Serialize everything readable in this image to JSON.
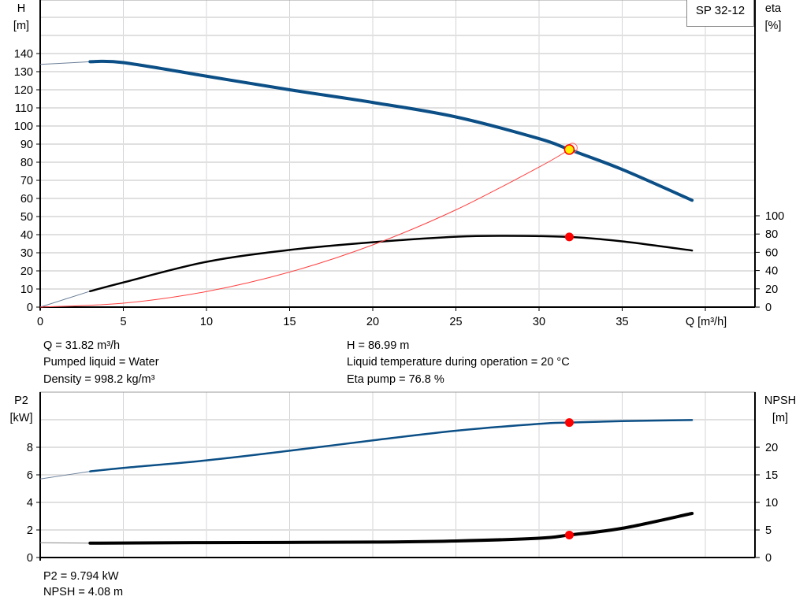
{
  "chart_data": [
    {
      "type": "line",
      "legend": "SP 32-12",
      "legend_placement": "top-right",
      "xlabel": "Q [m³/h]",
      "xlim": [
        0,
        40
      ],
      "x_ticks": [
        "0",
        "5",
        "10",
        "15",
        "20",
        "25",
        "30",
        "35"
      ],
      "ylabel_left": "H",
      "ylabel_left_unit": "[m]",
      "ylim_left": [
        0,
        160
      ],
      "y_ticks_left": [
        "0",
        "10",
        "20",
        "30",
        "40",
        "50",
        "60",
        "70",
        "80",
        "90",
        "100",
        "110",
        "120",
        "130",
        "140"
      ],
      "ylabel_right": "eta",
      "ylabel_right_unit": "[%]",
      "ylim_right": [
        0,
        320
      ],
      "y_ticks_right": [
        "0",
        "20",
        "40",
        "60",
        "80",
        "100"
      ],
      "grid": true,
      "series": [
        {
          "key": "H",
          "axis": "left",
          "color": "#0b4f86",
          "x": [
            0,
            3,
            5,
            10,
            15,
            20,
            25,
            30,
            31.82,
            35,
            39.2
          ],
          "y": [
            134,
            135.5,
            135,
            127.5,
            120,
            113,
            105,
            93,
            86.99,
            76,
            59
          ],
          "thin_until": 3
        },
        {
          "key": "eta",
          "axis": "right",
          "color": "#000000",
          "x": [
            0,
            3,
            5,
            10,
            15,
            20,
            25,
            28,
            31.82,
            35,
            39.2
          ],
          "y": [
            0,
            17.4,
            27,
            49.6,
            62.6,
            71,
            77,
            78,
            76.8,
            72,
            62
          ],
          "thin_until": 3
        },
        {
          "key": "system",
          "axis": "left",
          "color": "#ff4040",
          "x": [
            0,
            5,
            10,
            15,
            20,
            25,
            30,
            31.82
          ],
          "y": [
            0,
            2.15,
            8.59,
            19.33,
            34.36,
            53.69,
            77.31,
            86.99
          ]
        }
      ],
      "duty_point": {
        "Q": 31.82,
        "H": 86.99,
        "eta": 76.8
      }
    },
    {
      "type": "line",
      "xlim": [
        0,
        40
      ],
      "ylabel_left": "P2",
      "ylabel_left_unit": "[kW]",
      "ylim_left": [
        0,
        10
      ],
      "y_ticks_left": [
        "0",
        "2",
        "4",
        "6",
        "8"
      ],
      "ylabel_right": "NPSH",
      "ylabel_right_unit": "[m]",
      "ylim_right": [
        0,
        25
      ],
      "y_ticks_right": [
        "0",
        "5",
        "10",
        "15",
        "20"
      ],
      "grid": true,
      "series": [
        {
          "key": "P2",
          "axis": "left",
          "color": "#0b4f86",
          "x": [
            0,
            3,
            5,
            10,
            15,
            20,
            25,
            30,
            31.82,
            35,
            39.2
          ],
          "y": [
            5.7,
            6.25,
            6.5,
            7.05,
            7.75,
            8.5,
            9.2,
            9.7,
            9.794,
            9.9,
            9.98
          ],
          "thin_until": 3
        },
        {
          "key": "NPSH",
          "axis": "right",
          "color": "#000000",
          "x": [
            0,
            3,
            10,
            20,
            25,
            30,
            31.82,
            35,
            39.2
          ],
          "y": [
            2.7,
            2.6,
            2.7,
            2.8,
            3.0,
            3.5,
            4.08,
            5.3,
            8.0
          ],
          "thin_until": 3
        }
      ],
      "duty_point": {
        "Q": 31.82,
        "P2": 9.794,
        "NPSH": 4.08
      }
    }
  ],
  "info_top": {
    "q": "Q = 31.82 m³/h",
    "liquid": "Pumped liquid = Water",
    "density": "Density = 998.2 kg/m³",
    "h": "H = 86.99 m",
    "temp": "Liquid temperature during operation = 20 °C",
    "eta": "Eta pump = 76.8 %"
  },
  "info_bottom": {
    "p2": "P2 = 9.794 kW",
    "npsh": "NPSH = 4.08 m"
  }
}
